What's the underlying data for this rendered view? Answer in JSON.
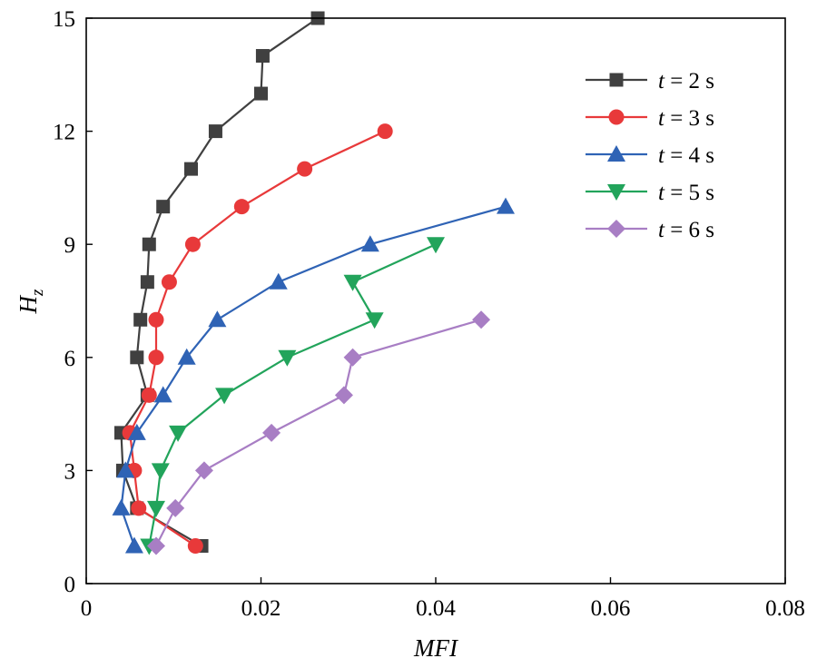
{
  "chart_data": {
    "type": "line",
    "title": "",
    "xlabel": "MFI",
    "ylabel": "H",
    "ylabel_subscript": "z",
    "xlim": [
      0,
      0.08
    ],
    "ylim": [
      0,
      15
    ],
    "xticks": [
      0,
      0.02,
      0.04,
      0.06,
      0.08
    ],
    "xtick_labels": [
      "0",
      "0.02",
      "0.04",
      "0.06",
      "0.08"
    ],
    "yticks": [
      0,
      3,
      6,
      9,
      12,
      15
    ],
    "ytick_labels": [
      "0",
      "3",
      "6",
      "9",
      "12",
      "15"
    ],
    "grid": false,
    "legend_position": "top-right",
    "series": [
      {
        "name": "t = 2 s",
        "legend_var": "t",
        "legend_rest": " = 2 s",
        "color": "#404040",
        "marker": "square",
        "x": [
          0.0132,
          0.0058,
          0.0042,
          0.004,
          0.007,
          0.0058,
          0.0062,
          0.007,
          0.0072,
          0.0088,
          0.012,
          0.0148,
          0.02,
          0.0202,
          0.0265
        ],
        "y": [
          1,
          2,
          3,
          4,
          5,
          6,
          7,
          8,
          9,
          10,
          11,
          12,
          13,
          14,
          15
        ]
      },
      {
        "name": "t = 3 s",
        "legend_var": "t",
        "legend_rest": " = 3 s",
        "color": "#e8393a",
        "marker": "circle",
        "x": [
          0.0125,
          0.006,
          0.0055,
          0.005,
          0.0072,
          0.008,
          0.008,
          0.0095,
          0.0122,
          0.0178,
          0.025,
          0.0342
        ],
        "y": [
          1,
          2,
          3,
          4,
          5,
          6,
          7,
          8,
          9,
          10,
          11,
          12
        ]
      },
      {
        "name": "t = 4 s",
        "legend_var": "t",
        "legend_rest": " = 4 s",
        "color": "#2f63b5",
        "marker": "triangle-up",
        "x": [
          0.0055,
          0.004,
          0.0045,
          0.0058,
          0.0088,
          0.0115,
          0.015,
          0.022,
          0.0325,
          0.048
        ],
        "y": [
          1,
          2,
          3,
          4,
          5,
          6,
          7,
          8,
          9,
          10
        ]
      },
      {
        "name": "t = 5 s",
        "legend_var": "t",
        "legend_rest": " = 5 s",
        "color": "#22a45b",
        "marker": "triangle-down",
        "x": [
          0.0072,
          0.008,
          0.0085,
          0.0105,
          0.0158,
          0.023,
          0.033,
          0.0305,
          0.04
        ],
        "y": [
          1,
          2,
          3,
          4,
          5,
          6,
          7,
          8,
          9
        ]
      },
      {
        "name": "t = 6 s",
        "legend_var": "t",
        "legend_rest": " = 6 s",
        "color": "#a87ec4",
        "marker": "diamond",
        "x": [
          0.008,
          0.0102,
          0.0135,
          0.0212,
          0.0295,
          0.0305,
          0.0452
        ],
        "y": [
          1,
          2,
          3,
          4,
          5,
          6,
          7
        ]
      }
    ]
  }
}
